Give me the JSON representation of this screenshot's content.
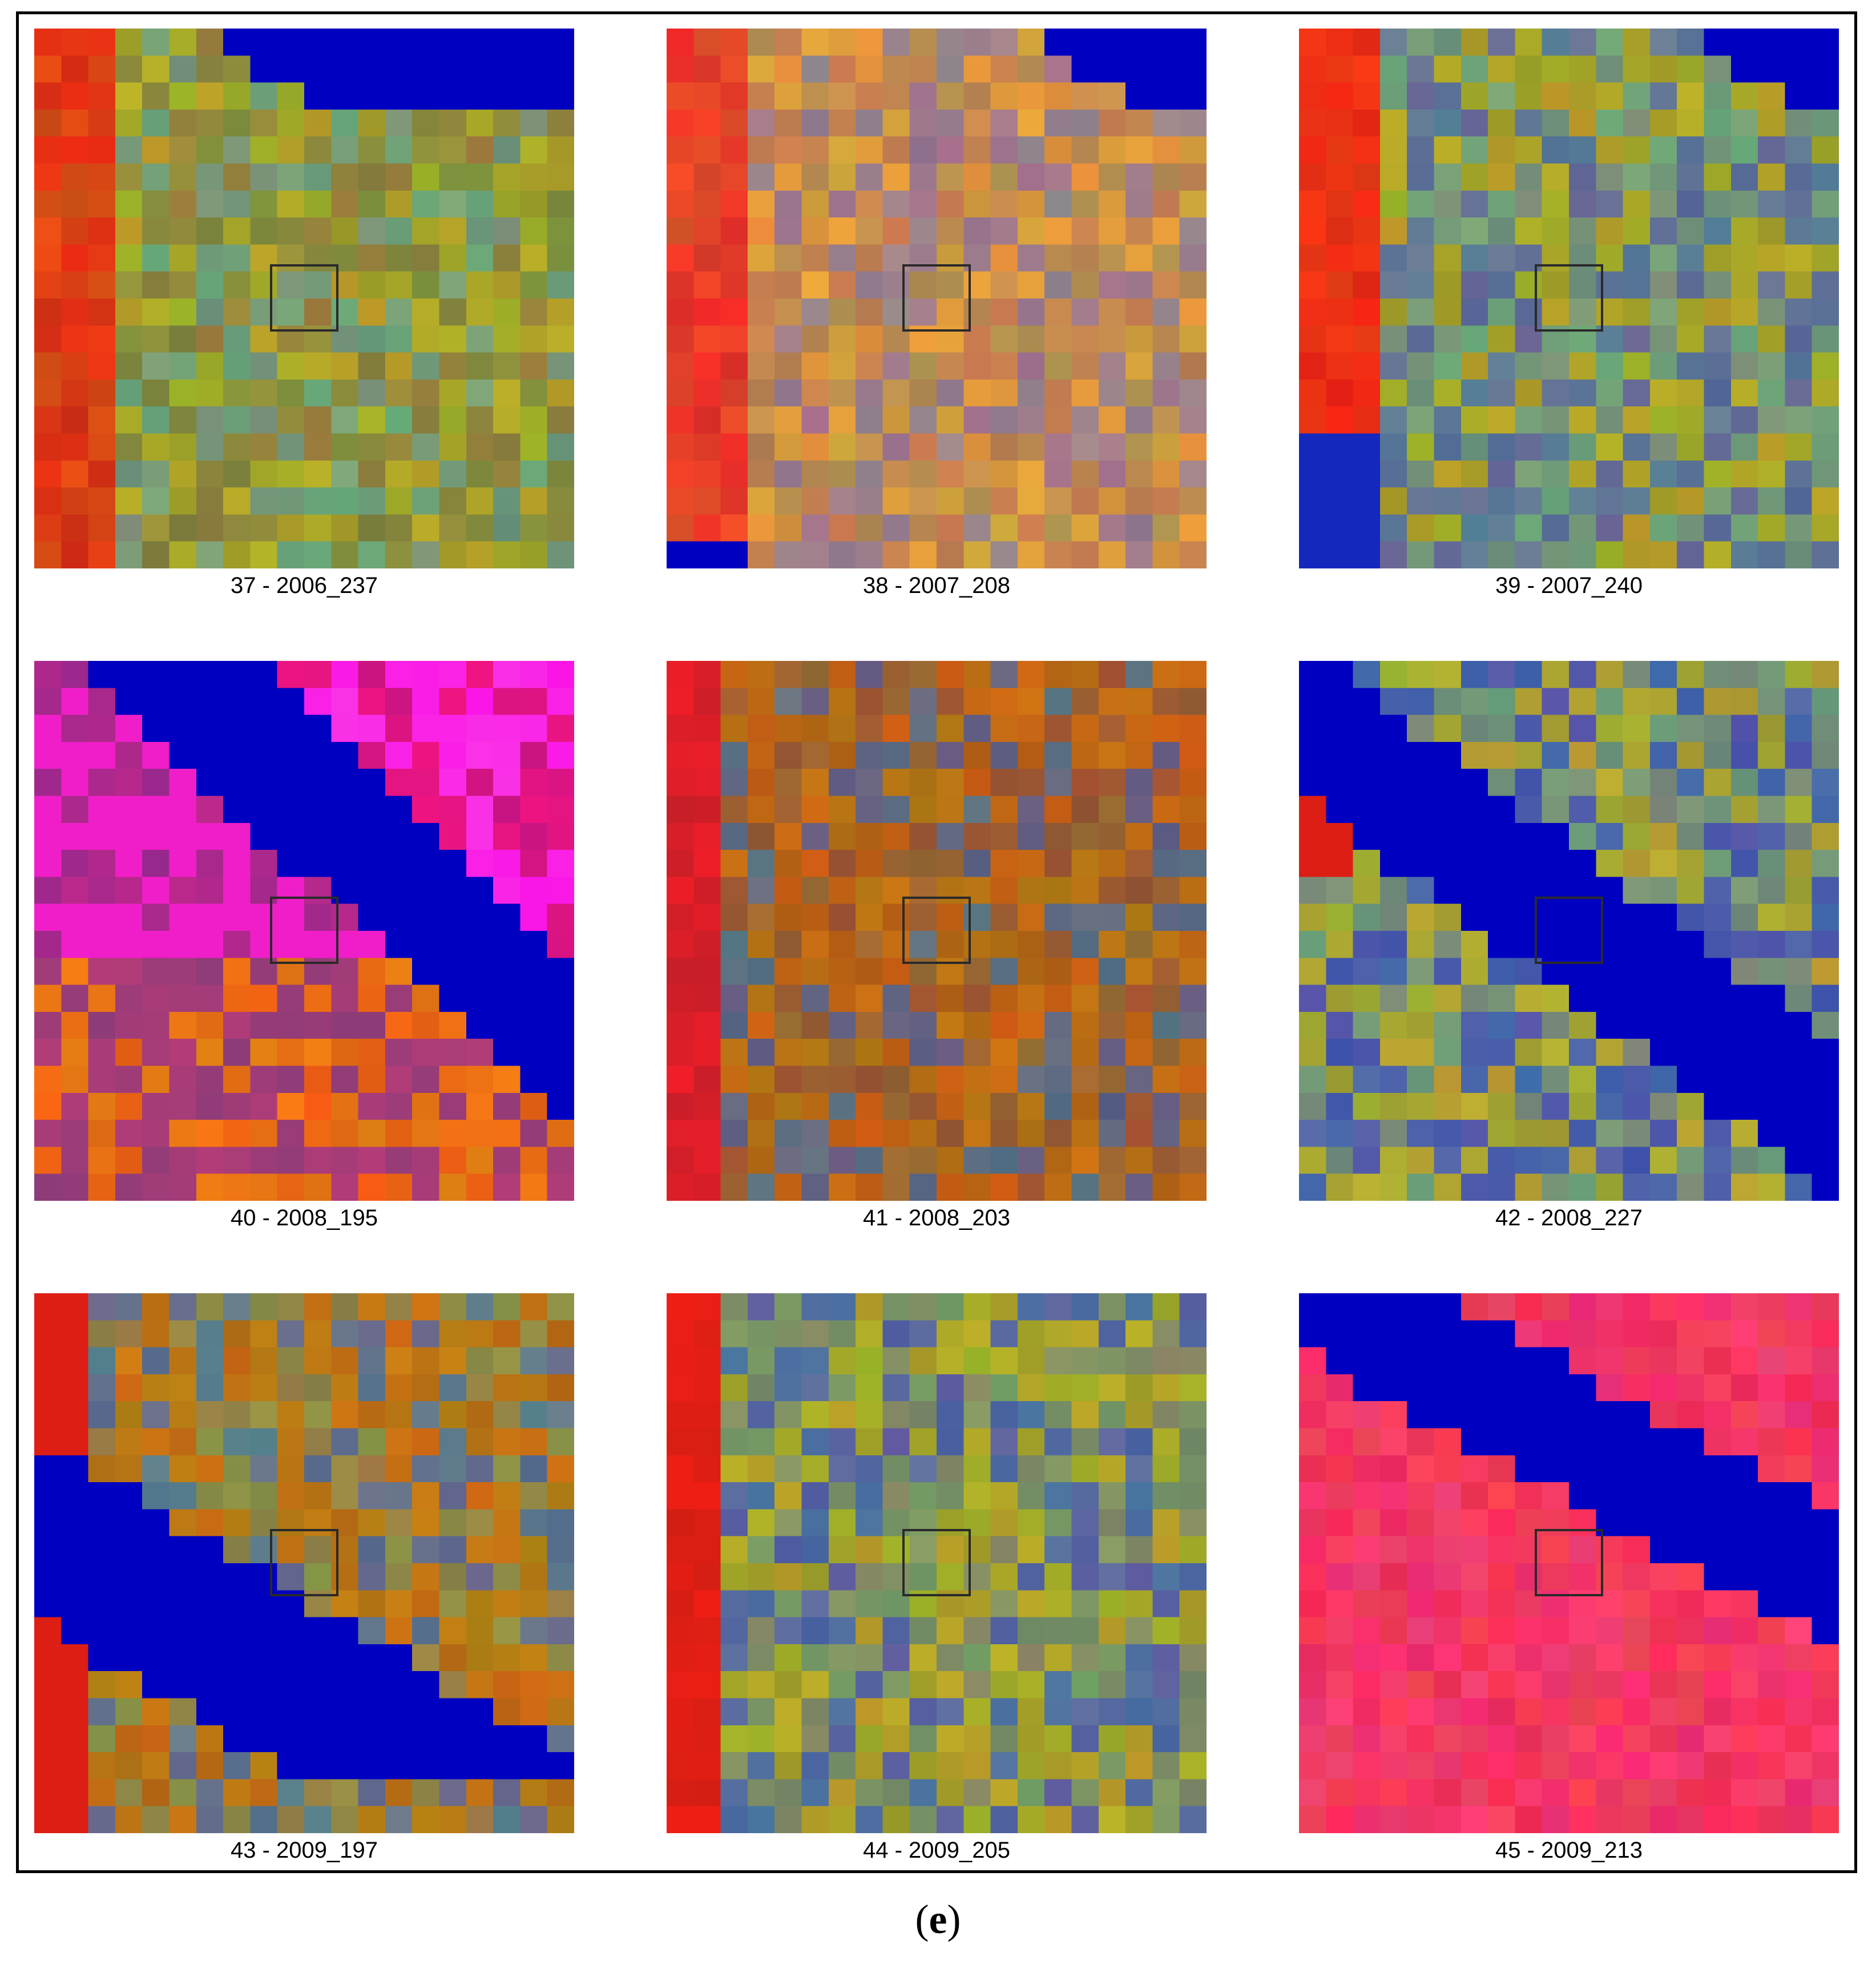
{
  "figure_label": {
    "open": "(",
    "letter": "e",
    "close": ")"
  },
  "tiles": [
    {
      "caption": "37 - 2006_237",
      "palette": "A"
    },
    {
      "caption": "38 - 2007_208",
      "palette": "B"
    },
    {
      "caption": "39 - 2007_240",
      "palette": "C"
    },
    {
      "caption": "40 - 2008_195",
      "palette": "D"
    },
    {
      "caption": "41 - 2008_203",
      "palette": "E"
    },
    {
      "caption": "42 - 2008_227",
      "palette": "F"
    },
    {
      "caption": "43 - 2009_197",
      "palette": "G"
    },
    {
      "caption": "44 - 2009_205",
      "palette": "H"
    },
    {
      "caption": "45 - 2009_213",
      "palette": "I"
    }
  ],
  "colors": {
    "water": "#0000c0",
    "selection_box": "#2a2a2a"
  }
}
